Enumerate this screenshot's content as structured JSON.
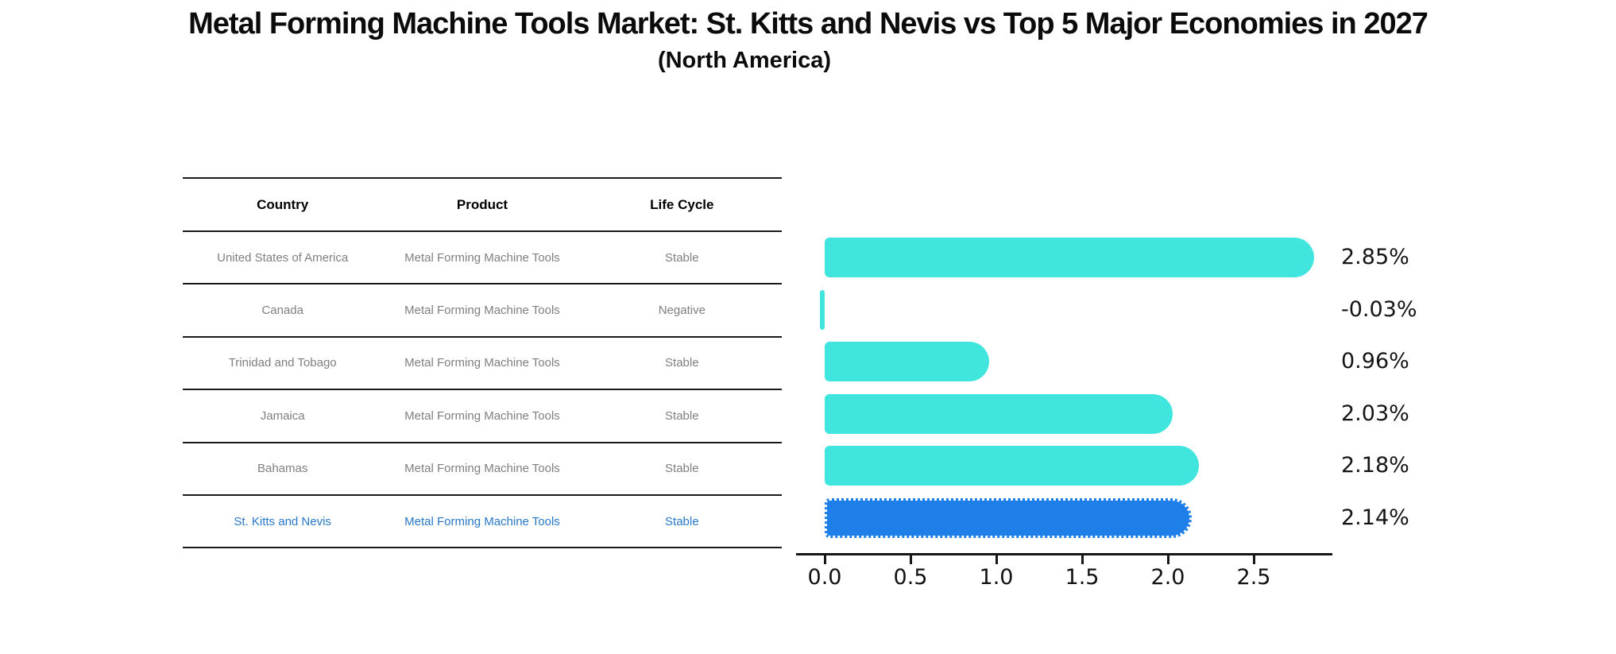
{
  "header": {
    "title": "Metal Forming Machine Tools Market: St. Kitts and Nevis vs Top 5 Major Economies in 2027",
    "subtitle": "(North America)"
  },
  "table": {
    "columns": [
      "Country",
      "Product",
      "Life Cycle"
    ],
    "rows": [
      {
        "country": "United States of America",
        "product": "Metal Forming Machine Tools",
        "life_cycle": "Stable",
        "highlighted": false
      },
      {
        "country": "Canada",
        "product": "Metal Forming Machine Tools",
        "life_cycle": "Negative",
        "highlighted": false
      },
      {
        "country": "Trinidad and Tobago",
        "product": "Metal Forming Machine Tools",
        "life_cycle": "Stable",
        "highlighted": false
      },
      {
        "country": "Jamaica",
        "product": "Metal Forming Machine Tools",
        "life_cycle": "Stable",
        "highlighted": false
      },
      {
        "country": "Bahamas",
        "product": "Metal Forming Machine Tools",
        "life_cycle": "Stable",
        "highlighted": false
      },
      {
        "country": "St. Kitts and Nevis",
        "product": "Metal Forming Machine Tools",
        "life_cycle": "Stable",
        "highlighted": true
      }
    ]
  },
  "chart_data": {
    "type": "bar",
    "orientation": "horizontal",
    "title": "Metal Forming Machine Tools Market: St. Kitts and Nevis vs Top 5 Major Economies in 2027 (North America)",
    "categories": [
      "United States of America",
      "Canada",
      "Trinidad and Tobago",
      "Jamaica",
      "Bahamas",
      "St. Kitts and Nevis"
    ],
    "values": [
      2.85,
      -0.03,
      0.96,
      2.03,
      2.18,
      2.14
    ],
    "value_labels": [
      "2.85%",
      "-0.03%",
      "0.96%",
      "2.03%",
      "2.18%",
      "2.14%"
    ],
    "xlabel": "",
    "ylabel": "",
    "xlim": [
      0,
      2.98
    ],
    "xticks": [
      0.0,
      0.5,
      1.0,
      1.5,
      2.0,
      2.5
    ],
    "xticklabels": [
      "0.0",
      "0.5",
      "1.0",
      "1.5",
      "2.0",
      "2.5"
    ],
    "grid": false,
    "legend": false,
    "bar_color": "#40E5DE",
    "highlight_color": "#1E7FE8",
    "highlight_index": 5,
    "highlight_edge": "white dotted"
  },
  "colors": {
    "background": "#ffffff",
    "table_text": "#7f7f7f",
    "table_header_text": "#000000",
    "highlight_text": "#2878c8",
    "rule_line": "#1a1a1a",
    "axis_text": "#111111"
  }
}
